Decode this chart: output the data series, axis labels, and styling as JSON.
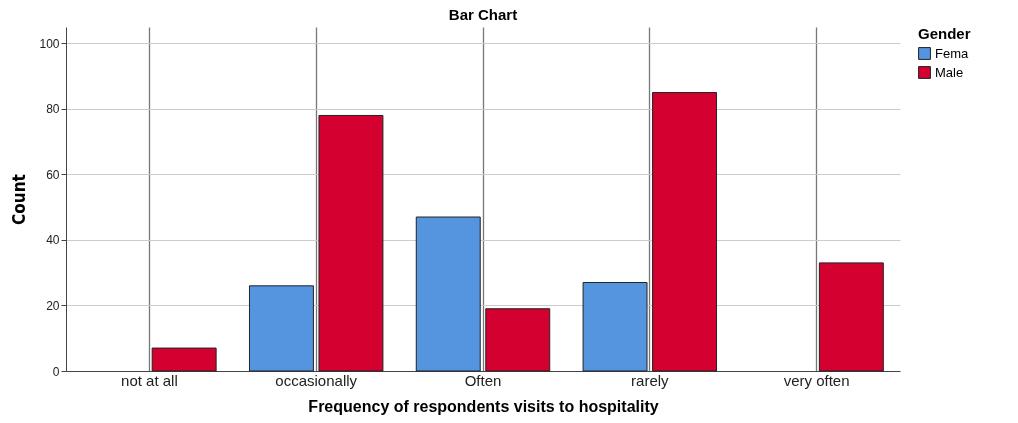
{
  "chart_data": {
    "type": "bar",
    "title": "Bar Chart",
    "xlabel": "Frequency of respondents visits to hospitality",
    "ylabel": "Count",
    "legend_title": "Gender",
    "categories": [
      "not at all",
      "occasionally",
      "Often",
      "rarely",
      "very often"
    ],
    "series": [
      {
        "name": "Fema",
        "color": "#5595e0",
        "values": [
          null,
          26,
          47,
          27,
          null
        ]
      },
      {
        "name": "Male",
        "color": "#d30030",
        "values": [
          7,
          78,
          19,
          85,
          33
        ]
      }
    ],
    "ylim": [
      0,
      105
    ],
    "yticks": [
      0,
      20,
      40,
      60,
      80,
      100
    ],
    "grid": true,
    "legend": "top right"
  }
}
